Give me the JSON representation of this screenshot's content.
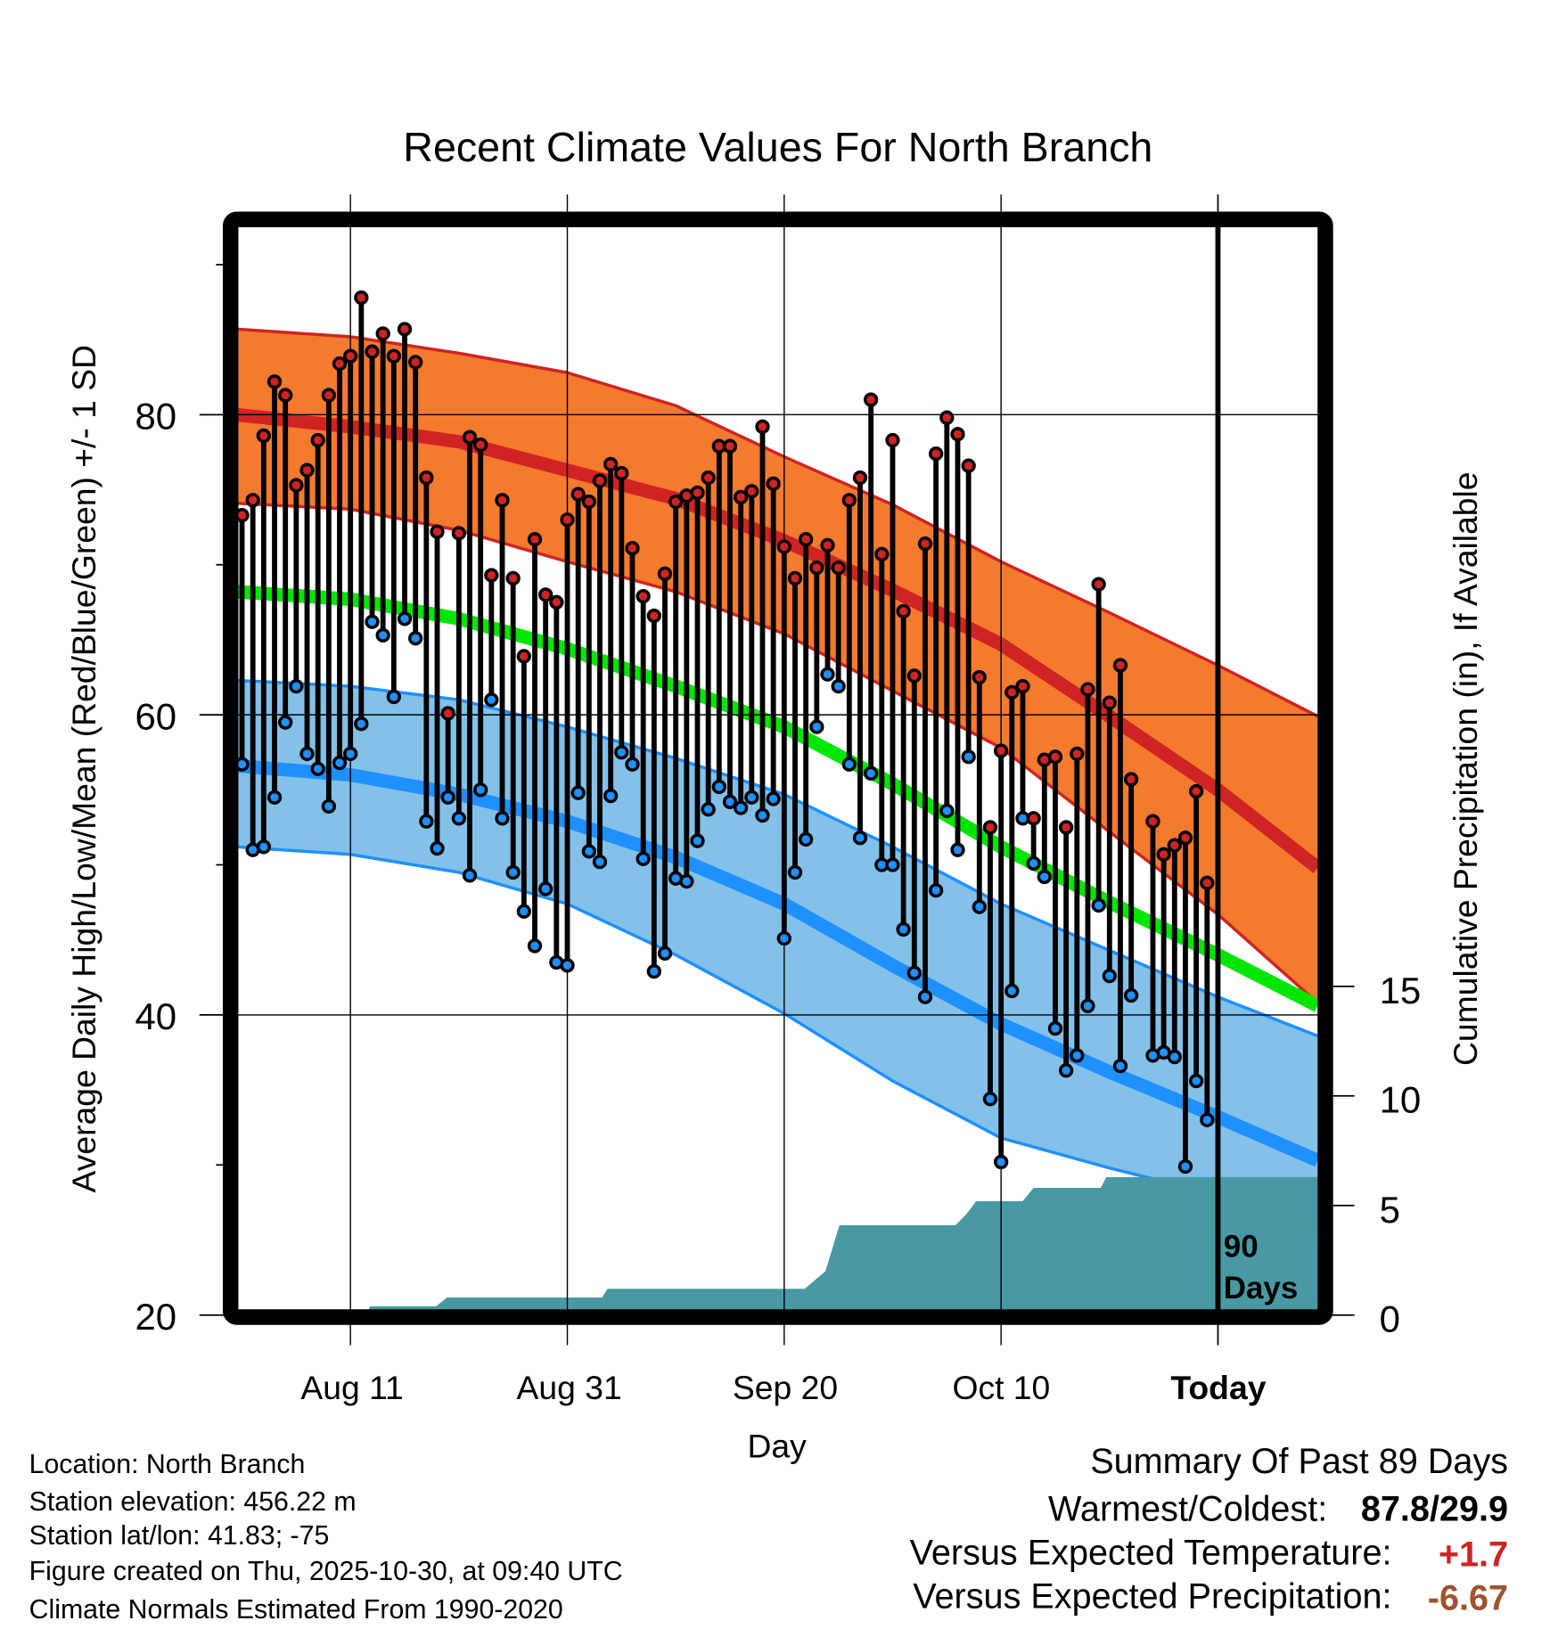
{
  "chart_data": {
    "type": "line",
    "title": "Recent Climate Values For North Branch",
    "xlabel": "Day",
    "ylabel": "Average Daily High/Low/Mean (Red/Blue/Green) +/- 1 SD",
    "y2label": "Cumulative Precipitation (in), If Available",
    "ylim": [
      20,
      92
    ],
    "y2lim": [
      0,
      15
    ],
    "y_ticks": [
      "20",
      "40",
      "60",
      "80"
    ],
    "y2_ticks": [
      "0",
      "5",
      "10",
      "15"
    ],
    "x_ticks": [
      "Aug 11",
      "Aug 31",
      "Sep 20",
      "Oct 10",
      "Today"
    ],
    "x_tick_days": [
      10,
      30,
      50,
      70,
      90
    ],
    "today_label_line1": "90",
    "today_label_line2": "Days",
    "series_note": "day index 0 = Aug 1",
    "daily_high": [
      73.3,
      74.3,
      78.6,
      82.2,
      81.3,
      75.3,
      76.3,
      78.3,
      81.3,
      83.4,
      83.9,
      87.8,
      84.2,
      85.4,
      83.9,
      85.7,
      83.5,
      75.8,
      72.2,
      60.1,
      72.1,
      78.5,
      78.0,
      69.3,
      74.3,
      69.1,
      63.9,
      71.7,
      68.0,
      67.5,
      73.0,
      74.7,
      74.2,
      75.6,
      76.7,
      76.1,
      71.1,
      67.9,
      66.6,
      69.4,
      74.2,
      74.6,
      74.8,
      75.8,
      77.9,
      77.9,
      74.5,
      74.9,
      79.2,
      75.4,
      71.2,
      69.1,
      71.7,
      69.8,
      71.3,
      69.8,
      74.3,
      75.8,
      81.0,
      70.7,
      78.3,
      66.9,
      62.6,
      71.4,
      77.4,
      79.8,
      78.7,
      76.6,
      62.5,
      52.5,
      57.6,
      61.5,
      61.9,
      53.1,
      57.0,
      57.2,
      52.5,
      57.4,
      61.7,
      68.7,
      60.8,
      63.3,
      55.7,
      null,
      52.9,
      50.7,
      51.3,
      51.8,
      54.9,
      48.8
    ],
    "daily_low": [
      56.7,
      51.0,
      51.2,
      54.5,
      59.5,
      61.9,
      57.4,
      56.4,
      53.9,
      56.8,
      57.4,
      59.4,
      66.2,
      65.3,
      61.2,
      66.4,
      65.1,
      52.9,
      51.1,
      54.5,
      53.1,
      49.3,
      55.0,
      61.0,
      53.1,
      49.5,
      46.9,
      44.6,
      48.4,
      43.5,
      43.3,
      54.8,
      50.9,
      50.2,
      54.6,
      57.5,
      56.7,
      50.4,
      42.9,
      44.1,
      49.1,
      48.9,
      51.6,
      53.7,
      55.2,
      54.2,
      53.8,
      54.5,
      53.3,
      54.4,
      45.1,
      49.5,
      51.7,
      59.2,
      62.7,
      61.9,
      56.7,
      51.8,
      56.1,
      50.0,
      50.0,
      45.7,
      42.8,
      41.2,
      48.3,
      53.6,
      51.0,
      57.2,
      47.2,
      34.4,
      30.2,
      41.6,
      53.1,
      50.1,
      49.2,
      39.1,
      36.3,
      37.3,
      40.6,
      47.3,
      42.6,
      36.6,
      41.3,
      null,
      37.3,
      37.5,
      37.2,
      29.9,
      35.6,
      33.0
    ],
    "normals": {
      "days": [
        -0.5,
        10,
        20,
        30,
        40,
        50,
        60,
        70,
        80,
        90,
        99.2
      ],
      "high_plus_sd": [
        85.7,
        85.2,
        84.1,
        82.8,
        80.6,
        77.2,
        74.0,
        70.2,
        66.8,
        63.3,
        59.9
      ],
      "high_mean": [
        80.0,
        79.2,
        78.2,
        76.3,
        74.4,
        71.6,
        68.3,
        64.7,
        59.9,
        55.0,
        49.8
      ],
      "high_minus_sd": [
        74.1,
        73.7,
        72.3,
        70.2,
        68.2,
        65.4,
        61.6,
        57.8,
        52.2,
        46.7,
        40.8
      ],
      "mean": [
        68.2,
        67.7,
        66.4,
        64.4,
        61.9,
        59.2,
        55.4,
        51.2,
        47.5,
        44.0,
        40.6
      ],
      "low_plus_sd": [
        62.3,
        61.9,
        61.0,
        59.2,
        57.1,
        54.7,
        51.2,
        47.4,
        44.3,
        41.2,
        38.6
      ],
      "low_mean": [
        56.6,
        56.0,
        54.7,
        52.9,
        50.5,
        47.4,
        43.3,
        39.4,
        36.2,
        33.2,
        30.3
      ],
      "low_minus_sd": [
        51.2,
        50.7,
        49.5,
        47.4,
        44.0,
        40.1,
        35.6,
        31.8,
        29.8,
        28.0,
        25.9
      ]
    },
    "cumulative_precip": [
      [
        -0.5,
        0
      ],
      [
        11.5,
        0
      ],
      [
        11.8,
        0.4
      ],
      [
        17.9,
        0.4
      ],
      [
        18.9,
        0.8
      ],
      [
        33.2,
        0.8
      ],
      [
        33.7,
        1.2
      ],
      [
        51.9,
        1.2
      ],
      [
        53.8,
        2.0
      ],
      [
        55.1,
        4.1
      ],
      [
        65.8,
        4.1
      ],
      [
        66.8,
        4.6
      ],
      [
        67.7,
        5.2
      ],
      [
        72.0,
        5.2
      ],
      [
        73.0,
        5.8
      ],
      [
        79.2,
        5.8
      ],
      [
        79.7,
        6.3
      ],
      [
        99.2,
        6.3
      ]
    ],
    "colors": {
      "high_band": "#f47a2e",
      "high_line": "#d02323",
      "mean_line": "#00e600",
      "low_band": "#84c1e8",
      "low_line": "#1e90ff",
      "precip": "#4899a4",
      "high_dot": "#d02323",
      "low_dot": "#1e90ff"
    }
  },
  "footer": {
    "location": "Location: North Branch",
    "elevation": "Station elevation: 456.22 m",
    "latlon": "Station lat/lon: 41.83; -75",
    "created": "Figure created on Thu, 2025-10-30, at 09:40 UTC",
    "normals": "Climate Normals Estimated From 1990-2020"
  },
  "summary": {
    "title": "Summary Of Past 89 Days",
    "warm_cold_label": "Warmest/Coldest:",
    "warm_cold_value": "87.8/29.9",
    "temp_label": "Versus Expected Temperature:",
    "temp_value": "+1.7",
    "precip_label": "Versus Expected Precipitation:",
    "precip_value": "-6.67"
  }
}
